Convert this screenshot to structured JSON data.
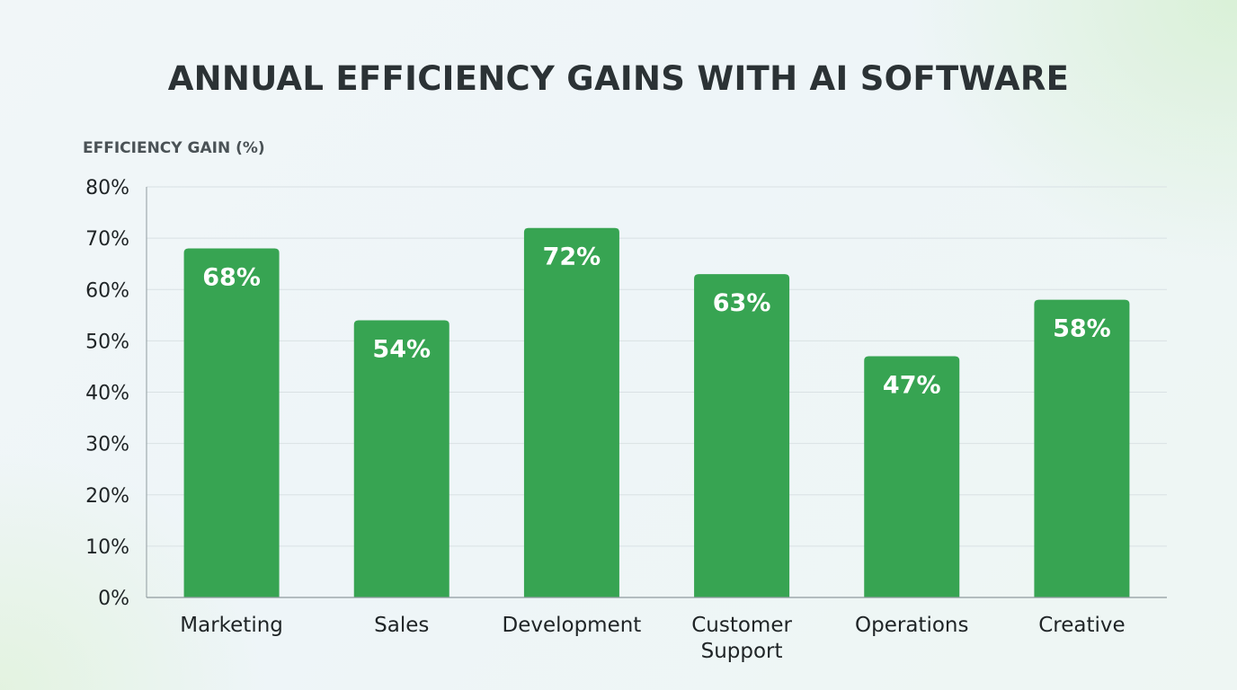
{
  "chart_data": {
    "type": "bar",
    "title": "ANNUAL EFFICIENCY GAINS WITH AI SOFTWARE",
    "ylabel": "EFFICIENCY GAIN (%)",
    "xlabel": "",
    "categories": [
      "Marketing",
      "Sales",
      "Development",
      "Customer Support",
      "Operations",
      "Creative"
    ],
    "category_lines": [
      [
        "Marketing"
      ],
      [
        "Sales"
      ],
      [
        "Development"
      ],
      [
        "Customer",
        "Support"
      ],
      [
        "Operations"
      ],
      [
        "Creative"
      ]
    ],
    "values": [
      68,
      54,
      72,
      63,
      47,
      58
    ],
    "data_labels": [
      "68%",
      "54%",
      "72%",
      "63%",
      "47%",
      "58%"
    ],
    "ylim": [
      0,
      80
    ],
    "yticks": [
      0,
      10,
      20,
      30,
      40,
      50,
      60,
      70,
      80
    ],
    "ytick_labels": [
      "0%",
      "10%",
      "20%",
      "30%",
      "40%",
      "50%",
      "60%",
      "70%",
      "80%"
    ],
    "grid": true,
    "legend": "none",
    "colors": {
      "bar": "#37a452",
      "grid": "#d9e1e4",
      "axis": "#8f9a9e",
      "text": "#1f2426"
    }
  }
}
